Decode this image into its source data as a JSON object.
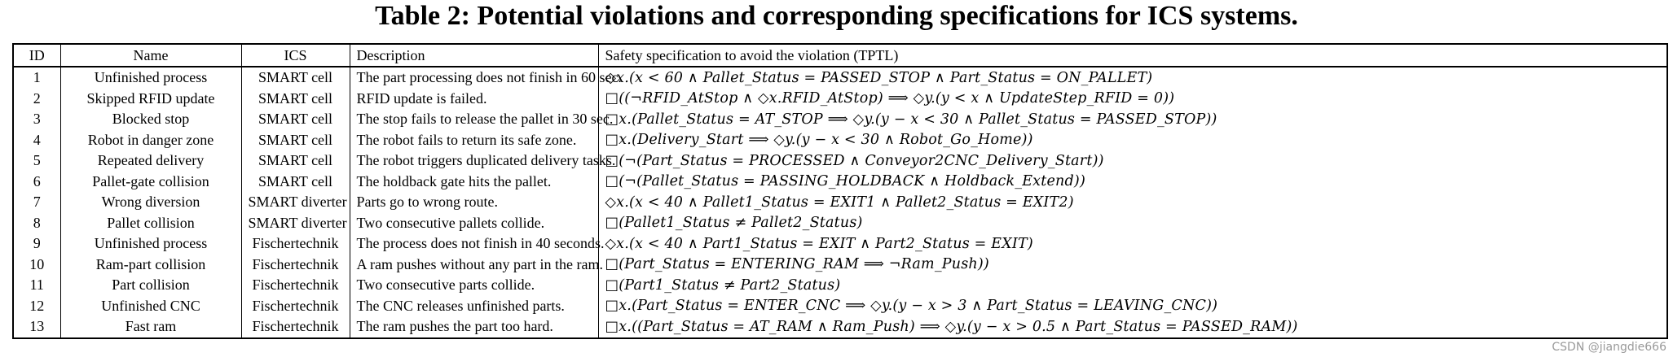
{
  "caption": "Table 2: Potential violations and corresponding specifications for ICS systems.",
  "headers": {
    "id": "ID",
    "name": "Name",
    "ics": "ICS",
    "description": "Description",
    "spec": "Safety specification to avoid the violation (TPTL)"
  },
  "rows": [
    {
      "id": "1",
      "name": "Unfinished process",
      "ics": "SMART cell",
      "description": "The part processing does not finish in 60 sec.",
      "spec": "◇x.(x < 60 ∧ Pallet_Status = PASSED_STOP ∧ Part_Status = ON_PALLET)"
    },
    {
      "id": "2",
      "name": "Skipped RFID update",
      "ics": "SMART cell",
      "description": "RFID update is failed.",
      "spec": "□((¬RFID_AtStop ∧ ◇x.RFID_AtStop) ⟹ ◇y.(y < x ∧ UpdateStep_RFID = 0))"
    },
    {
      "id": "3",
      "name": "Blocked stop",
      "ics": "SMART cell",
      "description": "The stop fails to release the pallet in 30 sec.",
      "spec": "□x.(Pallet_Status = AT_STOP ⟹ ◇y.(y − x < 30 ∧ Pallet_Status = PASSED_STOP))"
    },
    {
      "id": "4",
      "name": "Robot in danger zone",
      "ics": "SMART cell",
      "description": "The robot fails to return its safe zone.",
      "spec": "□x.(Delivery_Start ⟹ ◇y.(y − x < 30 ∧ Robot_Go_Home))"
    },
    {
      "id": "5",
      "name": "Repeated delivery",
      "ics": "SMART cell",
      "description": "The robot triggers duplicated delivery tasks.",
      "spec": "□(¬(Part_Status = PROCESSED ∧ Conveyor2CNC_Delivery_Start))"
    },
    {
      "id": "6",
      "name": "Pallet-gate collision",
      "ics": "SMART cell",
      "description": "The holdback gate hits the pallet.",
      "spec": "□(¬(Pallet_Status = PASSING_HOLDBACK ∧ Holdback_Extend))"
    },
    {
      "id": "7",
      "name": "Wrong diversion",
      "ics": "SMART diverter",
      "description": "Parts go to wrong route.",
      "spec": "◇x.(x < 40 ∧ Pallet1_Status = EXIT1 ∧ Pallet2_Status = EXIT2)"
    },
    {
      "id": "8",
      "name": "Pallet collision",
      "ics": "SMART diverter",
      "description": "Two consecutive pallets collide.",
      "spec": "□(Pallet1_Status ≠ Pallet2_Status)"
    },
    {
      "id": "9",
      "name": "Unfinished process",
      "ics": "Fischertechnik",
      "description": "The process does not finish in 40 seconds.",
      "spec": "◇x.(x < 40 ∧ Part1_Status = EXIT ∧ Part2_Status = EXIT)"
    },
    {
      "id": "10",
      "name": "Ram-part collision",
      "ics": "Fischertechnik",
      "description": "A ram pushes without any part in the ram.",
      "spec": "□(Part_Status = ENTERING_RAM ⟹ ¬Ram_Push))"
    },
    {
      "id": "11",
      "name": "Part collision",
      "ics": "Fischertechnik",
      "description": "Two consecutive parts collide.",
      "spec": "□(Part1_Status ≠ Part2_Status)"
    },
    {
      "id": "12",
      "name": "Unfinished CNC",
      "ics": "Fischertechnik",
      "description": "The CNC releases unfinished parts.",
      "spec": "□x.(Part_Status = ENTER_CNC ⟹ ◇y.(y − x > 3 ∧ Part_Status = LEAVING_CNC))"
    },
    {
      "id": "13",
      "name": "Fast ram",
      "ics": "Fischertechnik",
      "description": "The ram pushes the part too hard.",
      "spec": "□x.((Part_Status = AT_RAM ∧ Ram_Push) ⟹ ◇y.(y − x > 0.5 ∧ Part_Status = PASSED_RAM))"
    }
  ],
  "watermark": "CSDN @jiangdie666"
}
